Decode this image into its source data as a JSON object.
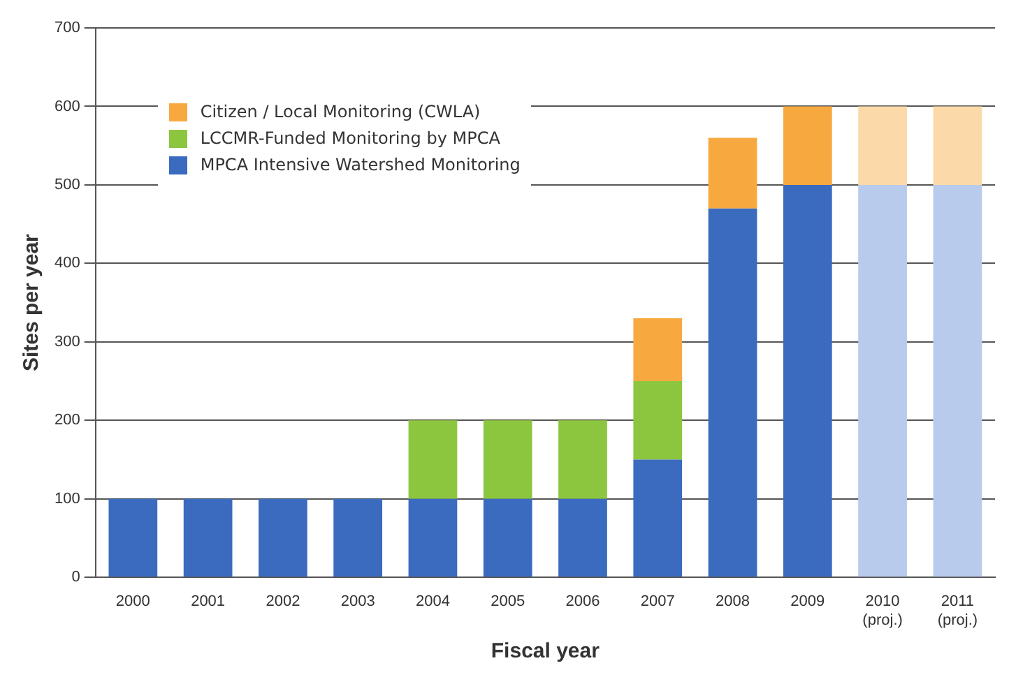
{
  "chart_data": {
    "type": "bar",
    "stacked": true,
    "xlabel": "Fiscal year",
    "ylabel": "Sites per year",
    "categories": [
      "2000",
      "2001",
      "2002",
      "2003",
      "2004",
      "2005",
      "2006",
      "2007",
      "2008",
      "2009",
      "2010 (proj.)",
      "2011 (proj.)"
    ],
    "series": [
      {
        "name": "MPCA Intensive Watershed Monitoring",
        "color": "#3a6bbf",
        "colors": [
          "#3a6bbf",
          "#3a6bbf",
          "#3a6bbf",
          "#3a6bbf",
          "#3a6bbf",
          "#3a6bbf",
          "#3a6bbf",
          "#3a6bbf",
          "#3a6bbf",
          "#3a6bbf",
          "#b9cbec",
          "#b9cbec"
        ],
        "values": [
          100,
          100,
          100,
          100,
          100,
          100,
          100,
          150,
          470,
          500,
          500,
          500
        ]
      },
      {
        "name": "LCCMR-Funded Monitoring by MPCA",
        "color": "#8cc63f",
        "values": [
          0,
          0,
          0,
          0,
          100,
          100,
          100,
          100,
          0,
          0,
          0,
          0
        ]
      },
      {
        "name": "Citizen / Local Monitoring (CWLA)",
        "color": "#f7a940",
        "colors": [
          "#f7a940",
          "#f7a940",
          "#f7a940",
          "#f7a940",
          "#f7a940",
          "#f7a940",
          "#f7a940",
          "#f7a940",
          "#f7a940",
          "#f7a940",
          "#fbd9a8",
          "#fbd9a8"
        ],
        "values": [
          0,
          0,
          0,
          0,
          0,
          0,
          0,
          80,
          90,
          100,
          100,
          100
        ]
      }
    ],
    "ylim": [
      0,
      700
    ],
    "yticks": [
      0,
      100,
      200,
      300,
      400,
      500,
      600,
      700
    ],
    "grid": "y",
    "legend": "top left"
  }
}
